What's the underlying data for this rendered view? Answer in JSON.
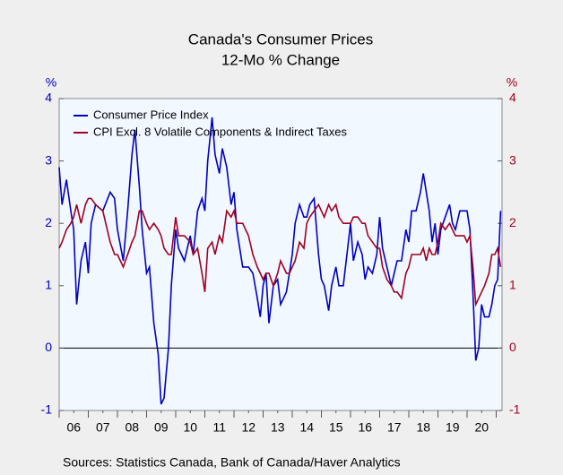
{
  "chart_data": {
    "type": "line",
    "title": "Canada's Consumer Prices",
    "subtitle": "12-Mo % Change",
    "y_label": "%",
    "y2_label": "%",
    "source": "Sources:  Statistics Canada, Bank of Canada/Haver Analytics",
    "x": [
      2006.0,
      2006.1,
      2006.25,
      2006.4,
      2006.5,
      2006.6,
      2006.75,
      2006.9,
      2007.0,
      2007.1,
      2007.25,
      2007.5,
      2007.75,
      2007.9,
      2008.0,
      2008.2,
      2008.35,
      2008.5,
      2008.6,
      2008.75,
      2008.85,
      2009.0,
      2009.1,
      2009.25,
      2009.4,
      2009.5,
      2009.6,
      2009.75,
      2009.85,
      2010.0,
      2010.1,
      2010.3,
      2010.5,
      2010.6,
      2010.75,
      2010.9,
      2011.0,
      2011.1,
      2011.25,
      2011.35,
      2011.5,
      2011.6,
      2011.75,
      2011.9,
      2012.0,
      2012.1,
      2012.3,
      2012.5,
      2012.65,
      2012.8,
      2012.9,
      2013.0,
      2013.1,
      2013.2,
      2013.35,
      2013.5,
      2013.6,
      2013.8,
      2013.9,
      2014.0,
      2014.1,
      2014.25,
      2014.4,
      2014.5,
      2014.6,
      2014.75,
      2014.9,
      2015.0,
      2015.1,
      2015.25,
      2015.35,
      2015.5,
      2015.6,
      2015.75,
      2015.9,
      2016.0,
      2016.1,
      2016.25,
      2016.4,
      2016.5,
      2016.6,
      2016.75,
      2016.9,
      2017.0,
      2017.1,
      2017.25,
      2017.4,
      2017.5,
      2017.6,
      2017.75,
      2017.9,
      2018.0,
      2018.1,
      2018.25,
      2018.4,
      2018.5,
      2018.6,
      2018.7,
      2018.8,
      2018.9,
      2019.0,
      2019.1,
      2019.25,
      2019.4,
      2019.5,
      2019.6,
      2019.75,
      2019.9,
      2020.0,
      2020.1,
      2020.2,
      2020.3,
      2020.4,
      2020.5,
      2020.6,
      2020.75,
      2020.85,
      2020.95,
      2021.05,
      2021.15
    ],
    "series": [
      {
        "name": "Consumer Price Index",
        "color": "#0000c0",
        "axis": "y",
        "values": [
          2.9,
          2.3,
          2.7,
          2.2,
          1.9,
          0.7,
          1.4,
          1.7,
          1.2,
          2.0,
          2.3,
          2.2,
          2.5,
          2.4,
          1.9,
          1.4,
          2.2,
          3.1,
          3.5,
          2.6,
          1.9,
          1.2,
          1.3,
          0.4,
          -0.1,
          -0.9,
          -0.8,
          0.0,
          1.0,
          1.9,
          1.6,
          1.4,
          1.8,
          1.5,
          2.2,
          2.4,
          2.2,
          3.0,
          3.7,
          3.1,
          2.8,
          3.2,
          2.9,
          2.3,
          2.5,
          1.9,
          1.3,
          1.3,
          1.2,
          0.8,
          0.5,
          1.0,
          1.2,
          0.4,
          1.0,
          1.1,
          0.7,
          0.9,
          1.2,
          1.5,
          2.0,
          2.3,
          2.1,
          2.1,
          2.3,
          2.4,
          1.5,
          1.1,
          1.0,
          0.6,
          1.0,
          1.3,
          1.0,
          1.0,
          1.6,
          2.0,
          1.4,
          1.7,
          1.5,
          1.1,
          1.3,
          1.2,
          1.5,
          2.1,
          1.6,
          1.3,
          1.0,
          1.2,
          1.4,
          1.4,
          1.9,
          1.7,
          2.2,
          2.2,
          2.5,
          2.8,
          2.5,
          2.2,
          1.7,
          2.0,
          1.5,
          1.9,
          2.1,
          2.3,
          2.0,
          1.9,
          2.2,
          2.2,
          2.2,
          1.9,
          0.9,
          -0.2,
          0.0,
          0.7,
          0.5,
          0.5,
          0.7,
          1.0,
          1.1,
          2.2
        ]
      },
      {
        "name": "CPI Excl. 8 Volatile Components & Indirect Taxes",
        "color": "#a00020",
        "axis": "y2",
        "values": [
          1.6,
          1.7,
          1.9,
          2.0,
          2.1,
          2.3,
          2.0,
          2.3,
          2.4,
          2.4,
          2.3,
          2.2,
          1.7,
          1.5,
          1.5,
          1.3,
          1.5,
          1.7,
          1.8,
          2.2,
          2.2,
          2.0,
          1.9,
          2.0,
          1.9,
          1.8,
          1.6,
          1.5,
          1.5,
          2.1,
          1.8,
          1.8,
          1.7,
          1.5,
          1.6,
          1.2,
          0.9,
          1.6,
          1.7,
          1.5,
          1.8,
          1.7,
          2.2,
          2.1,
          2.2,
          2.0,
          2.0,
          1.8,
          1.5,
          1.3,
          1.2,
          1.1,
          1.2,
          1.2,
          1.0,
          1.2,
          1.4,
          1.2,
          1.2,
          1.3,
          1.4,
          1.7,
          1.6,
          2.0,
          2.1,
          2.2,
          2.3,
          2.2,
          2.1,
          2.3,
          2.2,
          2.3,
          2.1,
          2.0,
          2.0,
          2.0,
          2.1,
          2.1,
          2.0,
          2.0,
          1.8,
          1.7,
          1.6,
          1.6,
          1.3,
          1.1,
          1.0,
          0.9,
          0.9,
          0.8,
          1.2,
          1.3,
          1.5,
          1.5,
          1.5,
          1.6,
          1.4,
          1.6,
          1.5,
          1.5,
          1.7,
          2.0,
          1.9,
          2.0,
          1.9,
          1.8,
          1.8,
          1.8,
          1.7,
          1.8,
          1.3,
          0.7,
          0.8,
          0.9,
          1.0,
          1.2,
          1.5,
          1.5,
          1.6,
          1.3
        ]
      }
    ],
    "xlim": [
      2006.0,
      2021.2
    ],
    "xticks": [
      {
        "value": 2006.5,
        "label": "06"
      },
      {
        "value": 2007.5,
        "label": "07"
      },
      {
        "value": 2008.5,
        "label": "08"
      },
      {
        "value": 2009.5,
        "label": "09"
      },
      {
        "value": 2010.5,
        "label": "10"
      },
      {
        "value": 2011.5,
        "label": "11"
      },
      {
        "value": 2012.5,
        "label": "12"
      },
      {
        "value": 2013.5,
        "label": "13"
      },
      {
        "value": 2014.5,
        "label": "14"
      },
      {
        "value": 2015.5,
        "label": "15"
      },
      {
        "value": 2016.5,
        "label": "16"
      },
      {
        "value": 2017.5,
        "label": "17"
      },
      {
        "value": 2018.5,
        "label": "18"
      },
      {
        "value": 2019.5,
        "label": "19"
      },
      {
        "value": 2020.5,
        "label": "20"
      }
    ],
    "ylim": [
      -1,
      4
    ],
    "yticks": [
      -1,
      0,
      1,
      2,
      3,
      4
    ],
    "y2lim": [
      -1,
      4
    ],
    "y2ticks": [
      -1,
      0,
      1,
      2,
      3,
      4
    ],
    "grid": false,
    "legend": "top-left"
  }
}
